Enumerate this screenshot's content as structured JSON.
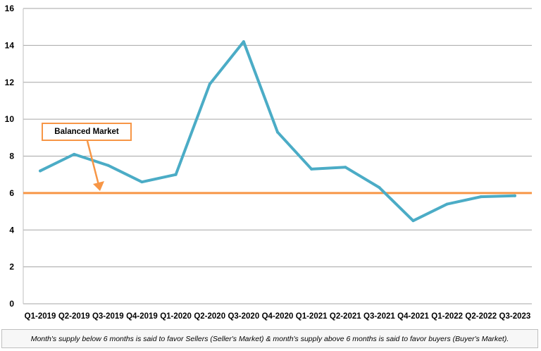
{
  "chart_data": {
    "type": "line",
    "categories": [
      "Q1-2019",
      "Q2-2019",
      "Q3-2019",
      "Q4-2019",
      "Q1-2020",
      "Q2-2020",
      "Q3-2020",
      "Q4-2020",
      "Q1-2021",
      "Q2-2021",
      "Q3-2021",
      "Q4-2021",
      "Q1-2022",
      "Q2-2022",
      "Q3-2023"
    ],
    "series": [
      {
        "values": [
          7.2,
          8.1,
          7.5,
          6.6,
          7.0,
          11.9,
          14.2,
          9.3,
          7.3,
          7.4,
          6.3,
          4.5,
          5.4,
          5.8,
          5.85
        ],
        "color": "#4BACC6"
      }
    ],
    "reference_line": {
      "value": 6,
      "color": "#F79646"
    },
    "ylim": [
      0,
      16
    ],
    "yticks": [
      0,
      2,
      4,
      6,
      8,
      10,
      12,
      14,
      16
    ],
    "grid": "horizontal",
    "title": "",
    "xlabel": "",
    "ylabel": ""
  },
  "annotation": {
    "label": "Balanced Market",
    "color": "#F79646"
  },
  "footnote": "Month's supply below 6 months is said to favor Sellers (Seller's Market) & month's supply above 6 months is said to favor buyers (Buyer's Market)."
}
